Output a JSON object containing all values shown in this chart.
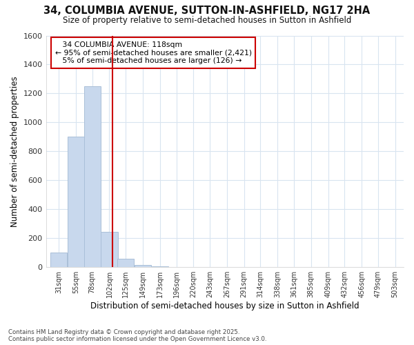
{
  "title": "34, COLUMBIA AVENUE, SUTTON-IN-ASHFIELD, NG17 2HA",
  "subtitle": "Size of property relative to semi-detached houses in Sutton in Ashfield",
  "xlabel": "Distribution of semi-detached houses by size in Sutton in Ashfield",
  "ylabel": "Number of semi-detached properties",
  "footnote1": "Contains HM Land Registry data © Crown copyright and database right 2025.",
  "footnote2": "Contains public sector information licensed under the Open Government Licence v3.0.",
  "property_label": "34 COLUMBIA AVENUE: 118sqm",
  "pct_smaller": 95,
  "pct_smaller_count": 2421,
  "pct_larger": 5,
  "pct_larger_count": 126,
  "bin_labels": [
    "31sqm",
    "55sqm",
    "78sqm",
    "102sqm",
    "125sqm",
    "149sqm",
    "173sqm",
    "196sqm",
    "220sqm",
    "243sqm",
    "267sqm",
    "291sqm",
    "314sqm",
    "338sqm",
    "361sqm",
    "385sqm",
    "409sqm",
    "432sqm",
    "456sqm",
    "479sqm",
    "503sqm"
  ],
  "bin_edges": [
    31,
    55,
    78,
    102,
    125,
    149,
    173,
    196,
    220,
    243,
    267,
    291,
    314,
    338,
    361,
    385,
    409,
    432,
    456,
    479,
    503
  ],
  "bin_width": 24,
  "bar_heights": [
    100,
    900,
    1250,
    245,
    60,
    15,
    5,
    0,
    0,
    0,
    0,
    0,
    0,
    0,
    0,
    0,
    0,
    0,
    0,
    0,
    0
  ],
  "bar_color": "#c8d8ed",
  "bar_edge_color": "#aabfd8",
  "vline_x": 118,
  "vline_color": "#cc0000",
  "ylim": [
    0,
    1600
  ],
  "xlim_left": 25,
  "xlim_right": 527,
  "annotation_box_color": "#cc0000",
  "background_color": "#ffffff",
  "grid_color": "#d8e4f0"
}
